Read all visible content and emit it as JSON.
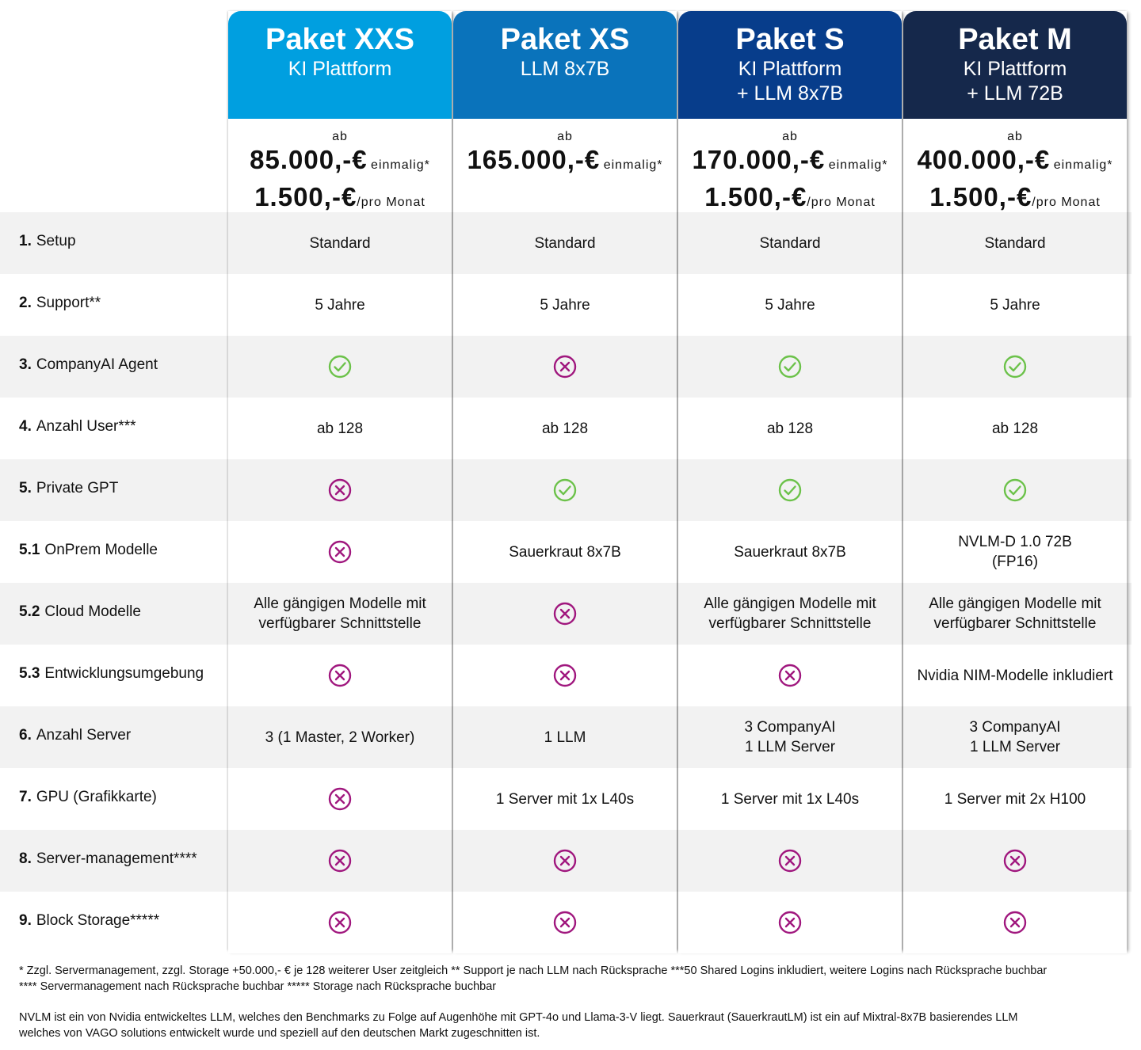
{
  "colors": {
    "xxs": "#009fe0",
    "xs": "#0a73bb",
    "s": "#073d8b",
    "m": "#15284b",
    "check": "#6cc24a",
    "cross": "#a0177e",
    "stripe": "#f2f2f2"
  },
  "rows": [
    {
      "num": "1.",
      "label": "Setup"
    },
    {
      "num": "2.",
      "label": "Support**"
    },
    {
      "num": "3.",
      "label": "CompanyAI Agent"
    },
    {
      "num": "4.",
      "label": "Anzahl User***"
    },
    {
      "num": "5.",
      "label": "Private GPT"
    },
    {
      "num": "5.1",
      "label": "OnPrem Modelle"
    },
    {
      "num": "5.2",
      "label": "Cloud Modelle"
    },
    {
      "num": "5.3",
      "label": "Entwicklungsumgebung"
    },
    {
      "num": "6.",
      "label": "Anzahl Server"
    },
    {
      "num": "7.",
      "label": "GPU (Grafikkarte)"
    },
    {
      "num": "8.",
      "label": "Server-management****"
    },
    {
      "num": "9.",
      "label": "Block Storage*****"
    }
  ],
  "packages": [
    {
      "title": "Paket XXS",
      "sub1": "KI Plattform",
      "sub2": "",
      "ab": "ab",
      "price1": "85.000,-€",
      "price1_suffix": "einmalig*",
      "price2": "1.500,-€",
      "price2_suffix": "/pro Monat",
      "cells": [
        {
          "type": "text",
          "lines": [
            "Standard"
          ]
        },
        {
          "type": "text",
          "lines": [
            "5 Jahre"
          ]
        },
        {
          "type": "check",
          "icon": "check-circle-icon"
        },
        {
          "type": "text",
          "lines": [
            "ab 128"
          ]
        },
        {
          "type": "cross",
          "icon": "cross-circle-icon"
        },
        {
          "type": "cross",
          "icon": "cross-circle-icon"
        },
        {
          "type": "text",
          "lines": [
            "Alle gängigen Modelle mit",
            "verfügbarer Schnittstelle"
          ]
        },
        {
          "type": "cross",
          "icon": "cross-circle-icon"
        },
        {
          "type": "text",
          "lines": [
            "3 (1 Master, 2 Worker)"
          ]
        },
        {
          "type": "cross",
          "icon": "cross-circle-icon"
        },
        {
          "type": "cross",
          "icon": "cross-circle-icon"
        },
        {
          "type": "cross",
          "icon": "cross-circle-icon"
        }
      ]
    },
    {
      "title": "Paket XS",
      "sub1": "LLM 8x7B",
      "sub2": "",
      "ab": "ab",
      "price1": "165.000,-€",
      "price1_suffix": "einmalig*",
      "price2": "",
      "price2_suffix": "",
      "cells": [
        {
          "type": "text",
          "lines": [
            "Standard"
          ]
        },
        {
          "type": "text",
          "lines": [
            "5 Jahre"
          ]
        },
        {
          "type": "cross",
          "icon": "cross-circle-icon"
        },
        {
          "type": "text",
          "lines": [
            "ab 128"
          ]
        },
        {
          "type": "check",
          "icon": "check-circle-icon"
        },
        {
          "type": "text",
          "lines": [
            "Sauerkraut 8x7B"
          ]
        },
        {
          "type": "cross",
          "icon": "cross-circle-icon"
        },
        {
          "type": "cross",
          "icon": "cross-circle-icon"
        },
        {
          "type": "text",
          "lines": [
            "1 LLM"
          ]
        },
        {
          "type": "text",
          "lines": [
            "1 Server mit 1x L40s"
          ]
        },
        {
          "type": "cross",
          "icon": "cross-circle-icon"
        },
        {
          "type": "cross",
          "icon": "cross-circle-icon"
        }
      ]
    },
    {
      "title": "Paket S",
      "sub1": "KI Plattform",
      "sub2": "+ LLM 8x7B",
      "ab": "ab",
      "price1": "170.000,-€",
      "price1_suffix": "einmalig*",
      "price2": "1.500,-€",
      "price2_suffix": "/pro Monat",
      "cells": [
        {
          "type": "text",
          "lines": [
            "Standard"
          ]
        },
        {
          "type": "text",
          "lines": [
            "5 Jahre"
          ]
        },
        {
          "type": "check",
          "icon": "check-circle-icon"
        },
        {
          "type": "text",
          "lines": [
            "ab 128"
          ]
        },
        {
          "type": "check",
          "icon": "check-circle-icon"
        },
        {
          "type": "text",
          "lines": [
            "Sauerkraut 8x7B"
          ]
        },
        {
          "type": "text",
          "lines": [
            "Alle gängigen Modelle mit",
            "verfügbarer Schnittstelle"
          ]
        },
        {
          "type": "cross",
          "icon": "cross-circle-icon"
        },
        {
          "type": "text",
          "lines": [
            "3 CompanyAI",
            "1 LLM Server"
          ]
        },
        {
          "type": "text",
          "lines": [
            "1 Server mit 1x L40s"
          ]
        },
        {
          "type": "cross",
          "icon": "cross-circle-icon"
        },
        {
          "type": "cross",
          "icon": "cross-circle-icon"
        }
      ]
    },
    {
      "title": "Paket M",
      "sub1": "KI Plattform",
      "sub2": "+ LLM 72B",
      "ab": "ab",
      "price1": "400.000,-€",
      "price1_suffix": "einmalig*",
      "price2": "1.500,-€",
      "price2_suffix": "/pro Monat",
      "cells": [
        {
          "type": "text",
          "lines": [
            "Standard"
          ]
        },
        {
          "type": "text",
          "lines": [
            "5 Jahre"
          ]
        },
        {
          "type": "check",
          "icon": "check-circle-icon"
        },
        {
          "type": "text",
          "lines": [
            "ab 128"
          ]
        },
        {
          "type": "check",
          "icon": "check-circle-icon"
        },
        {
          "type": "text",
          "lines": [
            "NVLM-D 1.0 72B",
            "(FP16)"
          ]
        },
        {
          "type": "text",
          "lines": [
            "Alle gängigen Modelle mit",
            "verfügbarer Schnittstelle"
          ]
        },
        {
          "type": "text",
          "lines": [
            "Nvidia NIM-Modelle inkludiert"
          ]
        },
        {
          "type": "text",
          "lines": [
            "3 CompanyAI",
            "1 LLM Server"
          ]
        },
        {
          "type": "text",
          "lines": [
            "1 Server mit 2x H100"
          ]
        },
        {
          "type": "cross",
          "icon": "cross-circle-icon"
        },
        {
          "type": "cross",
          "icon": "cross-circle-icon"
        }
      ]
    }
  ],
  "footnotes": {
    "line1": "* Zzgl. Servermanagement, zzgl. Storage +50.000,- € je 128 weiterer User zeitgleich ** Support je nach LLM nach Rücksprache ***50 Shared Logins inkludiert, weitere Logins nach Rücksprache buchbar",
    "line2": "**** Servermanagement nach Rücksprache buchbar  ***** Storage nach Rücksprache buchbar",
    "line3": "NVLM ist ein von Nvidia entwickeltes LLM, welches den Benchmarks zu Folge auf Augenhöhe mit GPT-4o und Llama-3-V liegt. Sauerkraut (SauerkrautLM) ist ein auf Mixtral-8x7B basierendes LLM",
    "line4": "welches von VAGO solutions entwickelt wurde und speziell auf den deutschen Markt zugeschnitten ist."
  }
}
